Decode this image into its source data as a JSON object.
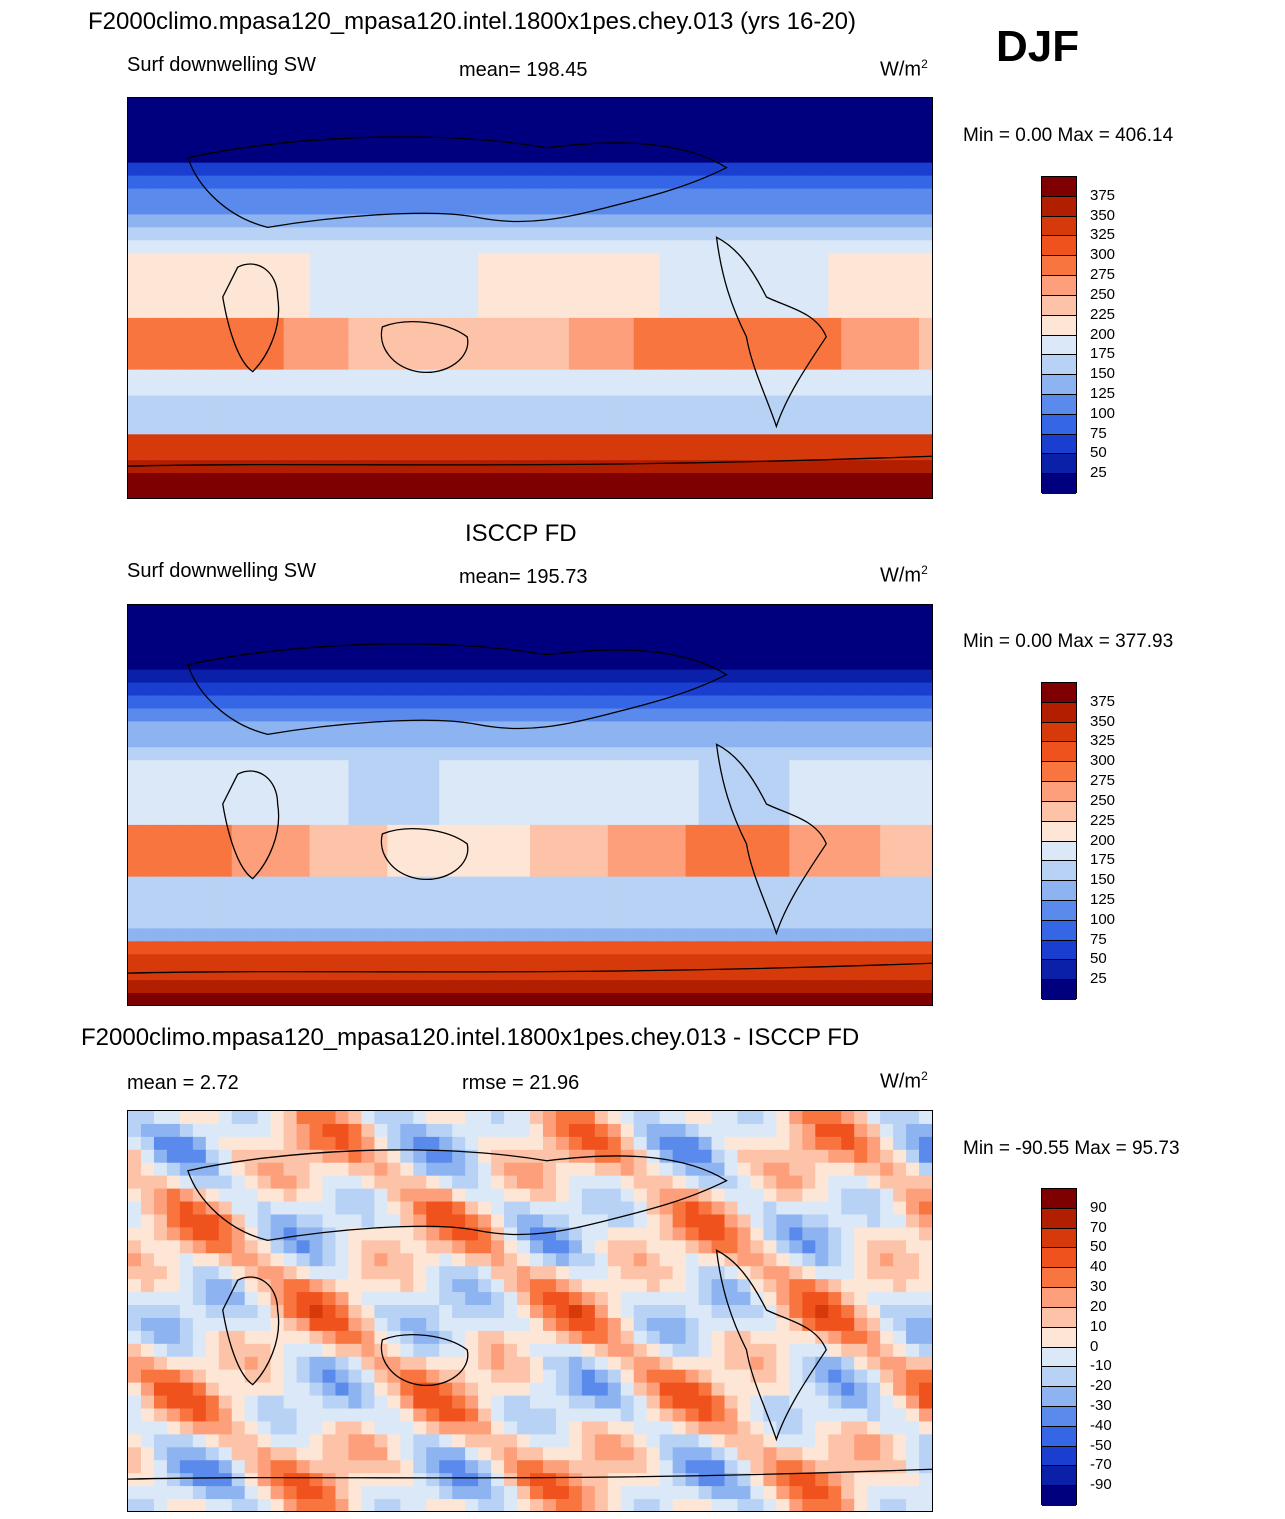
{
  "header": {
    "title": "F2000climo.mpasa120_mpasa120.intel.1800x1pes.chey.013 (yrs 16-20)",
    "season": "DJF"
  },
  "panels": [
    {
      "title": "",
      "left_label": "Surf downwelling SW",
      "center_label": "mean= 198.45",
      "units": "W/m",
      "units_sup": "2",
      "minmax": "Min =   0.00 Max = 406.14",
      "kind": "model"
    },
    {
      "title": "ISCCP FD",
      "left_label": "Surf downwelling SW",
      "center_label": "mean= 195.73",
      "units": "W/m",
      "units_sup": "2",
      "minmax": "Min =   0.00 Max = 377.93",
      "kind": "obs"
    },
    {
      "title": "F2000climo.mpasa120_mpasa120.intel.1800x1pes.chey.013 - ISCCP FD",
      "left_label": "mean =   2.72",
      "center_label": "rmse =  21.96",
      "units": "W/m",
      "units_sup": "2",
      "minmax": "Min = -90.55 Max =  95.73",
      "kind": "diff"
    }
  ],
  "colorbars": {
    "abs": {
      "labels": [
        "375",
        "350",
        "325",
        "300",
        "275",
        "250",
        "225",
        "200",
        "175",
        "150",
        "125",
        "100",
        "75",
        "50",
        "25"
      ],
      "colors": [
        "#7f0000",
        "#b21e00",
        "#d63a0a",
        "#f0521e",
        "#f9753f",
        "#fc9f7a",
        "#fdc3a8",
        "#fde6d6",
        "#dbe8f8",
        "#b8d2f5",
        "#8db4f0",
        "#5a8aeb",
        "#3466e6",
        "#1a3fd0",
        "#0b20a8",
        "#00007e"
      ]
    },
    "diff": {
      "labels": [
        "90",
        "70",
        "50",
        "40",
        "30",
        "20",
        "10",
        "0",
        "-10",
        "-20",
        "-30",
        "-40",
        "-50",
        "-70",
        "-90"
      ],
      "colors": [
        "#7f0000",
        "#b21e00",
        "#d63a0a",
        "#f0521e",
        "#f9753f",
        "#fc9f7a",
        "#fdc3a8",
        "#fde6d6",
        "#dbe8f8",
        "#b8d2f5",
        "#8db4f0",
        "#5a8aeb",
        "#3466e6",
        "#1a3fd0",
        "#0b20a8",
        "#00007e"
      ]
    }
  }
}
